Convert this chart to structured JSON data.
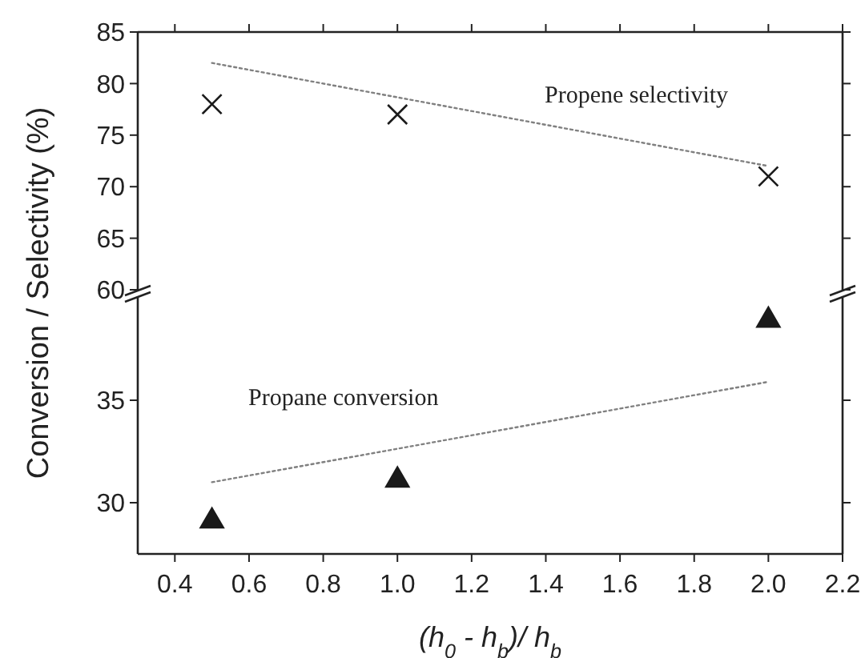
{
  "chart_data": [
    {
      "type": "scatter",
      "ylabel": "Conversion / Selectivity (%)",
      "xlim": [
        0.3,
        2.2
      ],
      "xticks": [
        0.4,
        0.6,
        0.8,
        1.0,
        1.2,
        1.4,
        1.6,
        1.8,
        2.0,
        2.2
      ],
      "ylim": [
        60,
        85
      ],
      "yticks": [
        60,
        65,
        70,
        75,
        80,
        85
      ],
      "tick_labels": "y",
      "grid": false,
      "annotations": [
        "Propene selectivity"
      ],
      "series": [
        {
          "x": [
            0.5,
            1.0,
            2.0
          ],
          "values": [
            78,
            77,
            71
          ],
          "color": "#1a1a1a",
          "marker": "cross"
        },
        {
          "type": "line",
          "x": [
            0.5,
            2.0
          ],
          "values": [
            82,
            72
          ],
          "color": "#808080",
          "marker": "none",
          "line_style": "dotted"
        }
      ]
    },
    {
      "type": "scatter",
      "xlabel": "(h$_{0}$ - h$_{b}$)/ h$_{b}$",
      "xlim": [
        0.3,
        2.2
      ],
      "xticks": [
        {
          "value": 0.4,
          "label": "0.4"
        },
        {
          "value": 0.6,
          "label": "0.6"
        },
        {
          "value": 0.8,
          "label": "0.8"
        },
        {
          "value": 1.0,
          "label": "1.0"
        },
        {
          "value": 1.2,
          "label": "1.2"
        },
        {
          "value": 1.4,
          "label": "1.4"
        },
        {
          "value": 1.6,
          "label": "1.6"
        },
        {
          "value": 1.8,
          "label": "1.8"
        },
        {
          "value": 2.0,
          "label": "2.0"
        },
        {
          "value": 2.2,
          "label": "2.2"
        }
      ],
      "ylim": [
        27.5,
        40
      ],
      "yticks": [
        30,
        35
      ],
      "grid": false,
      "annotations": [
        "Propane conversion"
      ],
      "series": [
        {
          "x": [
            0.5,
            1.0,
            2.0
          ],
          "values": [
            29.1,
            31.1,
            38.9
          ],
          "color": "#1a1a1a",
          "marker": "triangle"
        },
        {
          "type": "line",
          "x": [
            0.5,
            2.0
          ],
          "values": [
            31,
            35.9
          ],
          "color": "#808080",
          "marker": "none",
          "line_style": "dotted"
        }
      ]
    }
  ]
}
